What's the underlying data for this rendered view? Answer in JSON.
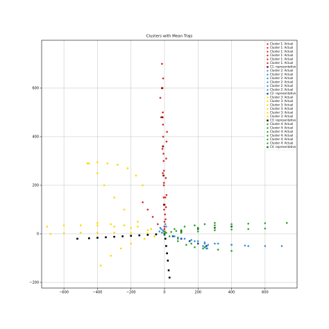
{
  "chart_data": {
    "type": "scatter",
    "title": "Clusters with Mean Trajs",
    "xlim": [
      -733,
      791
    ],
    "ylim": [
      -223,
      797
    ],
    "xticks": [
      {
        "value": -600,
        "label": "−600"
      },
      {
        "value": -400,
        "label": "−400"
      },
      {
        "value": -200,
        "label": "−200"
      },
      0,
      200,
      400,
      600
    ],
    "yticks": [
      {
        "value": -200,
        "label": "−200"
      },
      0,
      200,
      400,
      600
    ],
    "grid": true,
    "legend": "upper right",
    "series": [
      {
        "name": "Cluster 1: Actual",
        "color": "#d62728",
        "marker": "circle",
        "x": [
          0,
          -2,
          -4,
          -5,
          -8,
          -10,
          -12,
          -15
        ],
        "values": [
          0,
          100,
          200,
          300,
          400,
          500,
          600,
          700
        ]
      },
      {
        "name": "Cluster 1: Actual",
        "color": "#d62728",
        "marker": "circle",
        "x": [
          0,
          3,
          5,
          8,
          10,
          12,
          15
        ],
        "values": [
          20,
          80,
          150,
          230,
          310,
          380,
          420
        ]
      },
      {
        "name": "Cluster 1: Actual",
        "color": "#d62728",
        "marker": "circle",
        "x": [
          0,
          -40,
          -70,
          -100,
          -130
        ],
        "values": [
          0,
          40,
          70,
          100,
          130
        ]
      },
      {
        "name": "Cluster 1: Actual",
        "color": "#d62728",
        "marker": "circle",
        "x": [
          0,
          -5,
          -10,
          -12,
          -20,
          -25
        ],
        "values": [
          50,
          150,
          250,
          350,
          480,
          560
        ]
      },
      {
        "name": "Cluster 1: Actual",
        "color": "#d62728",
        "marker": "circle",
        "x": [
          2,
          6,
          9,
          12,
          -3,
          -8
        ],
        "values": [
          10,
          60,
          110,
          160,
          260,
          640
        ]
      },
      {
        "name": "Cluster 1: Actual",
        "color": "#d62728",
        "marker": "circle",
        "x": [
          -1,
          1,
          -3,
          -6,
          -9
        ],
        "values": [
          30,
          120,
          210,
          330,
          450
        ]
      },
      {
        "name": "C1: representative",
        "color": "#8b0000",
        "marker": "square",
        "x": [
          0,
          -3,
          -6,
          -9,
          -12,
          -15
        ],
        "values": [
          0,
          120,
          240,
          360,
          480,
          600
        ]
      },
      {
        "name": "Cluster 2: Actual",
        "color": "#3a8fd8",
        "marker": "circle",
        "x": [
          0,
          100,
          200,
          300,
          400,
          500,
          600,
          700
        ],
        "values": [
          0,
          -20,
          -30,
          -40,
          -45,
          -50,
          -50,
          -50
        ]
      },
      {
        "name": "Cluster 2: Actual",
        "color": "#3a8fd8",
        "marker": "circle",
        "x": [
          0,
          60,
          120,
          180,
          230,
          250
        ],
        "values": [
          0,
          -10,
          -20,
          -30,
          -50,
          -60
        ]
      },
      {
        "name": "Cluster 2: Actual",
        "color": "#3a8fd8",
        "marker": "circle",
        "x": [
          -20,
          -10,
          -5,
          0,
          10
        ],
        "values": [
          20,
          15,
          10,
          5,
          30
        ]
      },
      {
        "name": "Cluster 2: Actual",
        "color": "#3a8fd8",
        "marker": "circle",
        "x": [
          0,
          80,
          160,
          240,
          320,
          400,
          480
        ],
        "values": [
          -5,
          -15,
          -25,
          -35,
          -40,
          -45,
          -48
        ]
      },
      {
        "name": "Cluster 2: Actual",
        "color": "#3a8fd8",
        "marker": "circle",
        "x": [
          240,
          250,
          255,
          260
        ],
        "values": [
          -40,
          -50,
          -60,
          -45
        ]
      },
      {
        "name": "Cluster 2: Actual",
        "color": "#3a8fd8",
        "marker": "circle",
        "x": [
          -15,
          -25,
          -30,
          5
        ],
        "values": [
          5,
          25,
          10,
          40
        ]
      },
      {
        "name": "C2: representative",
        "color": "#1f4e9a",
        "marker": "square",
        "x": [
          0,
          50,
          100,
          150,
          200,
          250
        ],
        "values": [
          0,
          -10,
          -20,
          -30,
          -40,
          -50
        ]
      },
      {
        "name": "Cluster 3: Actual",
        "color": "#ffd700",
        "marker": "circle",
        "x": [
          0,
          -100,
          -200,
          -300,
          -400,
          -500,
          -600,
          -680
        ],
        "values": [
          0,
          2,
          3,
          5,
          5,
          5,
          3,
          0
        ]
      },
      {
        "name": "Cluster 3: Actual",
        "color": "#ffd700",
        "marker": "circle",
        "x": [
          0,
          -80,
          -160,
          -240,
          -300,
          -360,
          -400,
          -450
        ],
        "values": [
          0,
          20,
          50,
          100,
          150,
          200,
          250,
          290
        ]
      },
      {
        "name": "Cluster 3: Actual",
        "color": "#ffd700",
        "marker": "circle",
        "x": [
          0,
          -60,
          -120,
          -200,
          -260,
          -320,
          -380
        ],
        "values": [
          0,
          -10,
          -20,
          -40,
          -60,
          -90,
          -130
        ]
      },
      {
        "name": "Cluster 3: Actual",
        "color": "#ffd700",
        "marker": "circle",
        "x": [
          0,
          -100,
          -200,
          -300,
          -400,
          -500,
          -600,
          -700
        ],
        "values": [
          5,
          15,
          25,
          30,
          35,
          35,
          35,
          30
        ]
      },
      {
        "name": "Cluster 3: Actual",
        "color": "#ffd700",
        "marker": "circle",
        "x": [
          -460,
          -400,
          -340,
          -280,
          -220,
          -170,
          -130
        ],
        "values": [
          290,
          295,
          290,
          285,
          270,
          240,
          200
        ]
      },
      {
        "name": "Cluster 3: Actual",
        "color": "#ffd700",
        "marker": "circle",
        "x": [
          0,
          -80,
          -160,
          -240,
          -320,
          -400
        ],
        "values": [
          10,
          20,
          30,
          35,
          40,
          45
        ]
      },
      {
        "name": "C3: representative",
        "color": "#000000",
        "marker": "square",
        "x": [
          30,
          25,
          20,
          15,
          10,
          5,
          0,
          -50,
          -100,
          -150,
          -200,
          -250,
          -300,
          -350,
          -400,
          -450,
          -520
        ],
        "values": [
          -180,
          -150,
          -110,
          -80,
          -50,
          -20,
          0,
          -2,
          -4,
          -6,
          -8,
          -10,
          -12,
          -14,
          -16,
          -18,
          -20
        ]
      },
      {
        "name": "Cluster 4: Actual",
        "color": "#2ca02c",
        "marker": "circle",
        "x": [
          0,
          100,
          200,
          300,
          400,
          500,
          600,
          730
        ],
        "values": [
          0,
          15,
          25,
          35,
          40,
          42,
          44,
          45
        ]
      },
      {
        "name": "Cluster 4: Actual",
        "color": "#2ca02c",
        "marker": "circle",
        "x": [
          0,
          80,
          160,
          240,
          320,
          400
        ],
        "values": [
          0,
          -20,
          -40,
          -55,
          -65,
          -70
        ]
      },
      {
        "name": "Cluster 4: Actual",
        "color": "#2ca02c",
        "marker": "circle",
        "x": [
          0,
          60,
          120,
          180,
          240,
          300
        ],
        "values": [
          10,
          20,
          30,
          35,
          40,
          45
        ]
      },
      {
        "name": "Cluster 4: Actual",
        "color": "#2ca02c",
        "marker": "circle",
        "x": [
          0,
          100,
          200,
          300,
          400,
          500,
          600
        ],
        "values": [
          0,
          5,
          10,
          15,
          18,
          20,
          22
        ]
      },
      {
        "name": "Cluster 4: Actual",
        "color": "#2ca02c",
        "marker": "circle",
        "x": [
          30,
          80,
          130,
          180,
          230
        ],
        "values": [
          -10,
          -30,
          -45,
          -55,
          -60
        ]
      },
      {
        "name": "Cluster 4: Actual",
        "color": "#2ca02c",
        "marker": "circle",
        "x": [
          10,
          40,
          70,
          100
        ],
        "values": [
          5,
          8,
          12,
          15
        ]
      },
      {
        "name": "C4: representative",
        "color": "#1a6b1a",
        "marker": "square",
        "x": [
          0,
          100,
          200,
          300,
          400
        ],
        "values": [
          0,
          10,
          20,
          25,
          30
        ]
      }
    ]
  }
}
